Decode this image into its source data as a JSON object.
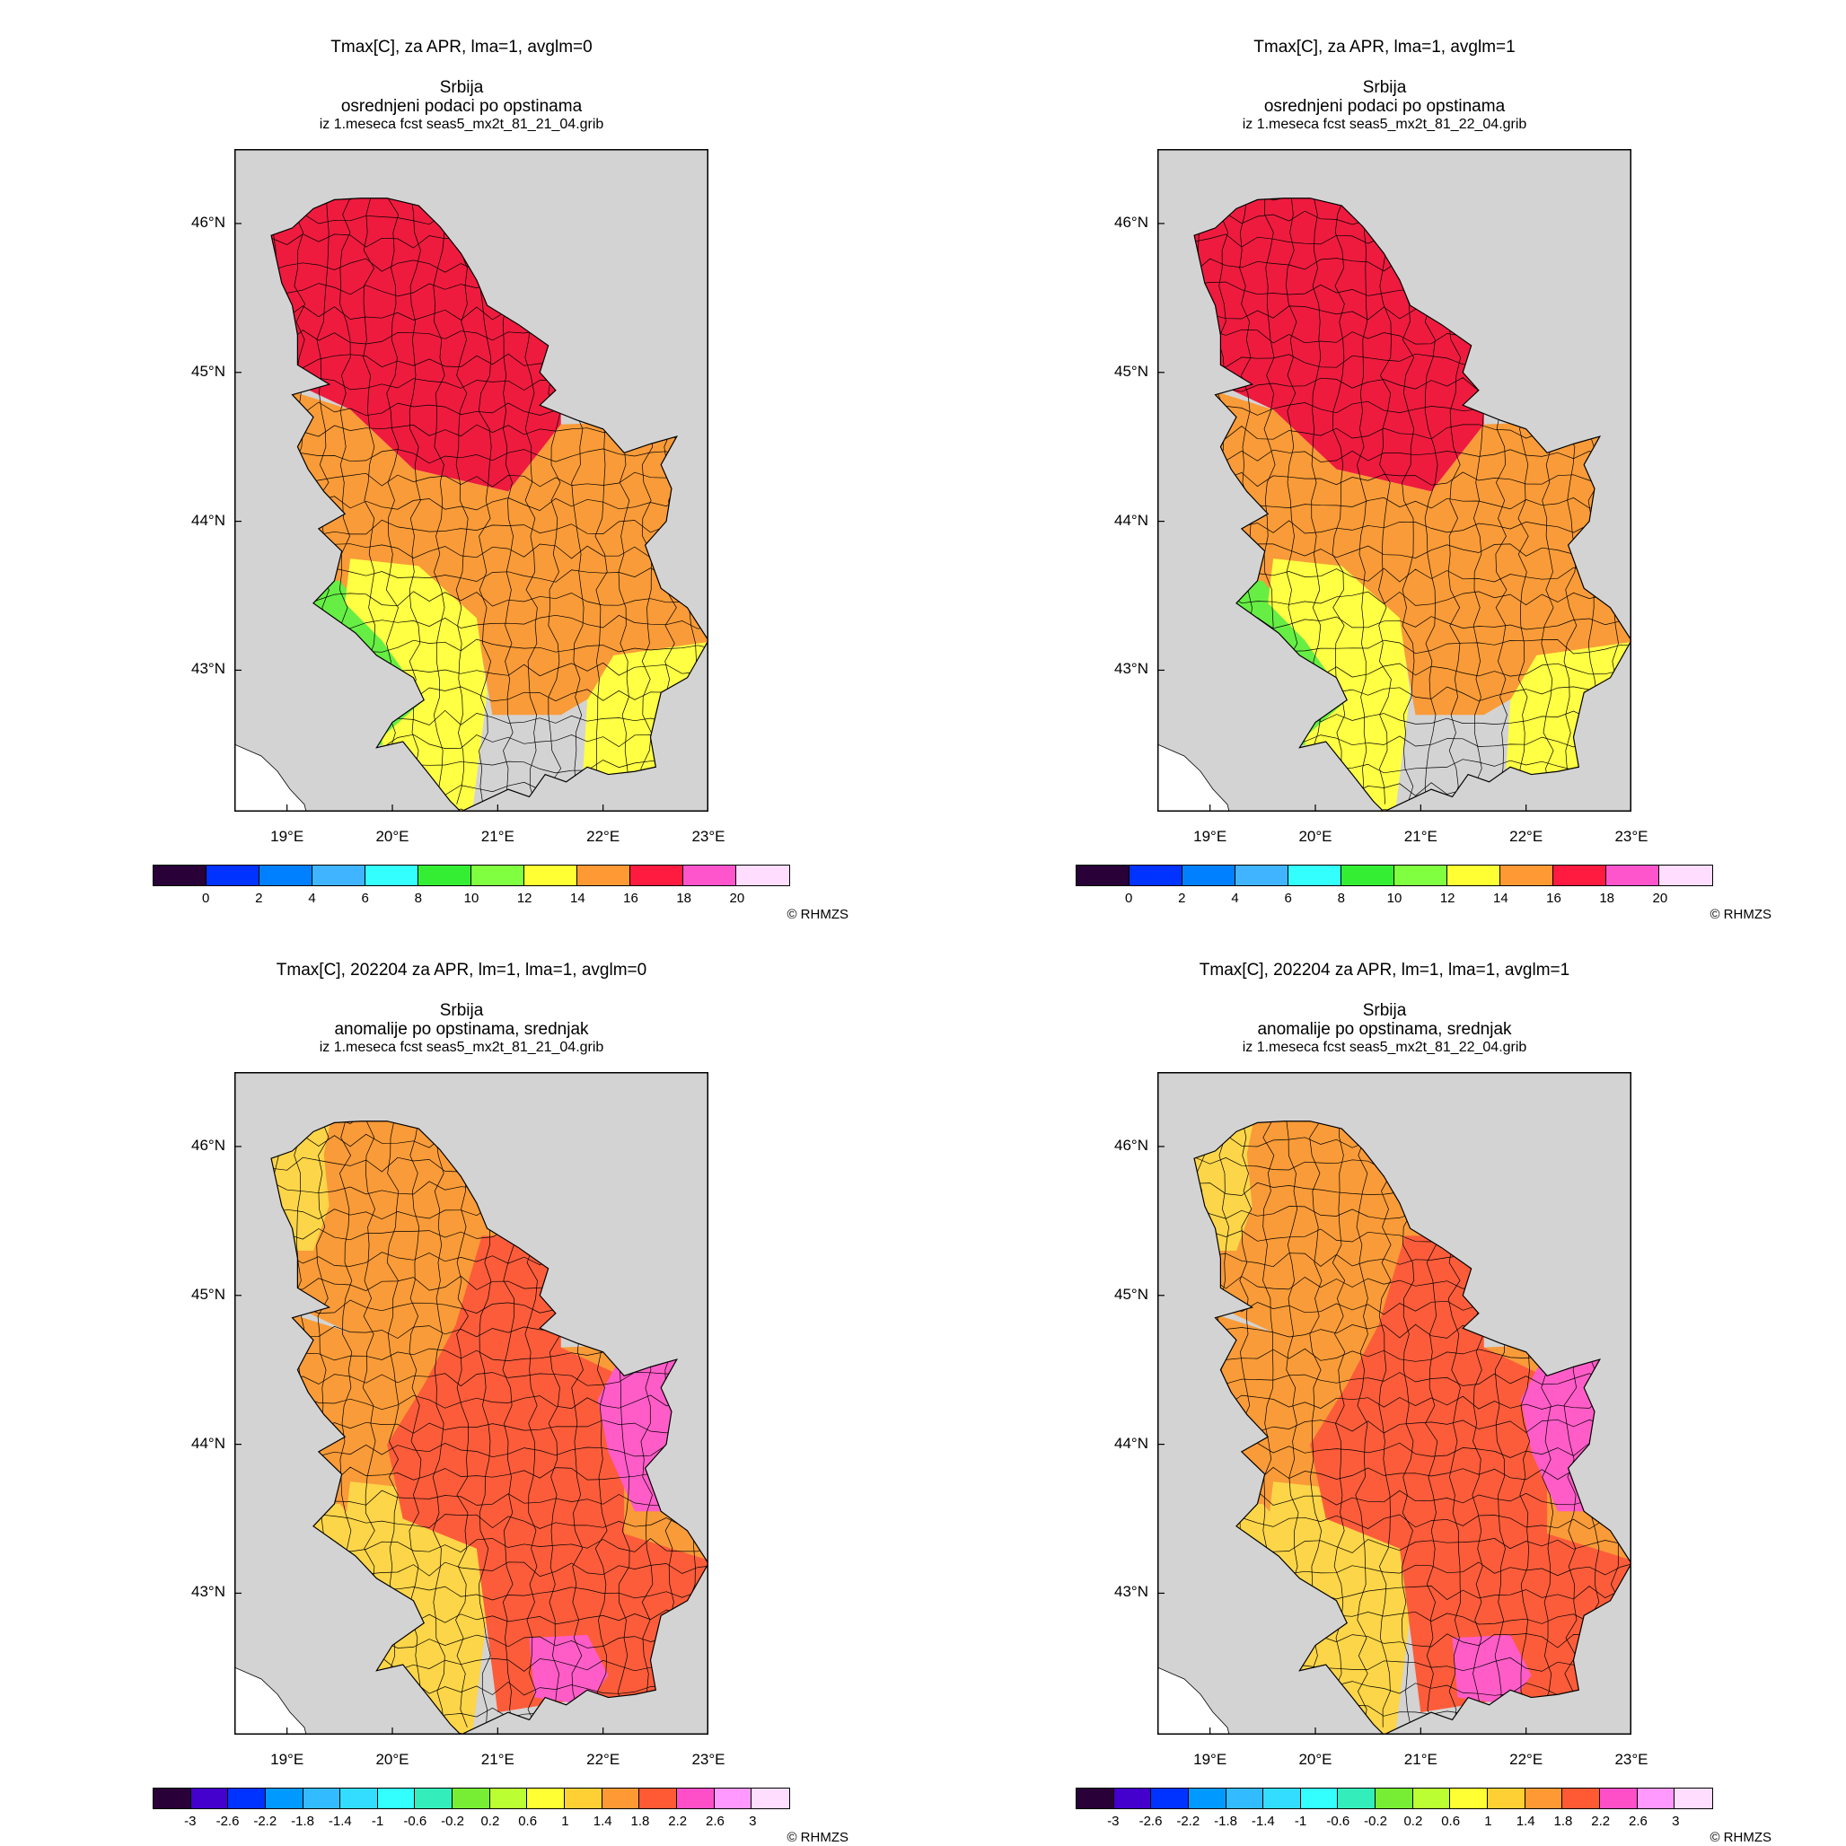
{
  "copyright": "© RHMZS",
  "lat_labels": [
    "46°N",
    "45°N",
    "44°N",
    "43°N"
  ],
  "lon_labels": [
    "19°E",
    "20°E",
    "21°E",
    "22°E",
    "23°E"
  ],
  "colors": {
    "background": "#d3d3d3",
    "sea": "#ffffff",
    "boundary": "#000000"
  },
  "panels": [
    {
      "title": "Tmax[C], za APR, lma=1, avglm=0",
      "region": "Srbija",
      "subtitle": "osrednjeni podaci po opstinama",
      "source": "iz 1.meseca fcst seas5_mx2t_81_21_04.grib",
      "colorbar": {
        "colors": [
          "#2a0038",
          "#0033ff",
          "#0080ff",
          "#40b4ff",
          "#33ffff",
          "#33ee33",
          "#80ff40",
          "#ffff33",
          "#ff9933",
          "#ff1a40",
          "#ff55cc",
          "#ffddff"
        ],
        "labels": [
          "0",
          "2",
          "4",
          "6",
          "8",
          "10",
          "12",
          "14",
          "16",
          "18",
          "20"
        ]
      },
      "zones": {
        "north": "#ee1b3e",
        "center": "#f99b38",
        "southwest": "#66ee44",
        "south": "#ffff44",
        "east": "#f99b38",
        "southeast": "#ffff44",
        "southcenter": "#f99b38"
      }
    },
    {
      "title": "Tmax[C], za APR, lma=1, avglm=1",
      "region": "Srbija",
      "subtitle": "osrednjeni podaci po opstinama",
      "source": "iz 1.meseca fcst seas5_mx2t_81_22_04.grib",
      "colorbar": {
        "colors": [
          "#2a0038",
          "#0033ff",
          "#0080ff",
          "#40b4ff",
          "#33ffff",
          "#33ee33",
          "#80ff40",
          "#ffff33",
          "#ff9933",
          "#ff1a40",
          "#ff55cc",
          "#ffddff"
        ],
        "labels": [
          "0",
          "2",
          "4",
          "6",
          "8",
          "10",
          "12",
          "14",
          "16",
          "18",
          "20"
        ]
      },
      "zones": {
        "north": "#ee1b3e",
        "center": "#f99b38",
        "southwest": "#66ee44",
        "south": "#ffff44",
        "east": "#f99b38",
        "southeast": "#ffff44",
        "southcenter": "#f99b38"
      }
    },
    {
      "title": "Tmax[C], 202204 za APR, lm=1, lma=1, avglm=0",
      "region": "Srbija",
      "subtitle": "anomalije po opstinama, srednjak",
      "source": "iz 1.meseca fcst seas5_mx2t_81_21_04.grib",
      "colorbar": {
        "colors": [
          "#2a0038",
          "#4400cc",
          "#0033ff",
          "#0099ff",
          "#33bbff",
          "#33ddff",
          "#33ffff",
          "#33eebb",
          "#77ee33",
          "#bbff33",
          "#ffff33",
          "#ffd033",
          "#ff9933",
          "#ff5a33",
          "#ff4fc8",
          "#ff99ff",
          "#ffddff"
        ],
        "labels": [
          "-3",
          "-2.6",
          "-2.2",
          "-1.8",
          "-1.4",
          "-1",
          "-0.6",
          "-0.2",
          "0.2",
          "0.6",
          "1",
          "1.4",
          "1.8",
          "2.2",
          "2.6",
          "3"
        ]
      },
      "zones": {
        "north": "#f99b38",
        "center": "#f99b38",
        "southwest": "#fcd548",
        "south": "#fcd548",
        "east": "#fc5c3a",
        "southeast": "#fc5c3a",
        "southcenter": "#fc5c3a",
        "northwest": "#fcd548",
        "eastmid": "#fc5c3a",
        "farEast": "#ff5cc8",
        "pink_s": "#ff5cc8"
      }
    },
    {
      "title": "Tmax[C], 202204 za APR, lm=1, lma=1, avglm=1",
      "region": "Srbija",
      "subtitle": "anomalije po opstinama, srednjak",
      "source": "iz 1.meseca fcst seas5_mx2t_81_22_04.grib",
      "colorbar": {
        "colors": [
          "#2a0038",
          "#4400cc",
          "#0033ff",
          "#0099ff",
          "#33bbff",
          "#33ddff",
          "#33ffff",
          "#33eebb",
          "#77ee33",
          "#bbff33",
          "#ffff33",
          "#ffd033",
          "#ff9933",
          "#ff5a33",
          "#ff4fc8",
          "#ff99ff",
          "#ffddff"
        ],
        "labels": [
          "-3",
          "-2.6",
          "-2.2",
          "-1.8",
          "-1.4",
          "-1",
          "-0.6",
          "-0.2",
          "0.2",
          "0.6",
          "1",
          "1.4",
          "1.8",
          "2.2",
          "2.6",
          "3"
        ]
      },
      "zones": {
        "north": "#f99b38",
        "center": "#f99b38",
        "southwest": "#fcd548",
        "south": "#fcd548",
        "east": "#fc5c3a",
        "southeast": "#fc5c3a",
        "southcenter": "#fc5c3a",
        "northwest": "#fcd548",
        "eastmid": "#fc5c3a",
        "farEast": "#ff5cc8",
        "pink_s": "#ff5cc8"
      }
    }
  ]
}
